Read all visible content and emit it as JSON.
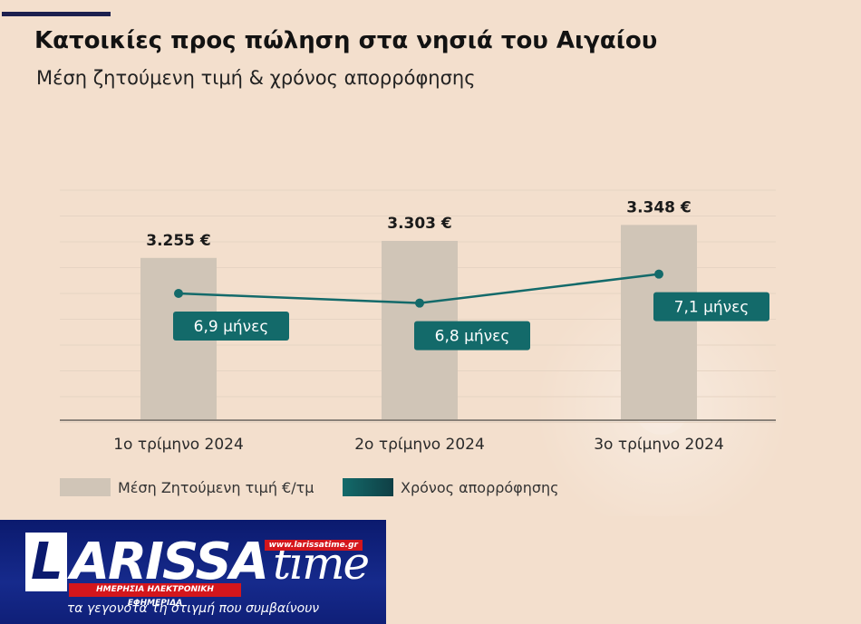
{
  "header": {
    "title": "Κατοικίες προς πώληση στα νησιά του Αιγαίου",
    "subtitle": "Μέση ζητούμενη τιμή & χρόνος απορρόφησης"
  },
  "chart_data": {
    "type": "bar",
    "categories": [
      "1ο τρίμηνο 2024",
      "2ο τρίμηνο 2024",
      "3ο τρίμηνο 2024"
    ],
    "series": [
      {
        "name": "Μέση Ζητούμενη τιμή €/τμ",
        "type": "bar",
        "values": [
          3255,
          3303,
          3348
        ],
        "labels": [
          "3.255 €",
          "3.303 €",
          "3.348 €"
        ],
        "color": "#d0c5b7"
      },
      {
        "name": "Χρόνος απορρόφησης",
        "type": "line",
        "values": [
          6.9,
          6.8,
          7.1
        ],
        "labels": [
          "6,9 μήνες",
          "6,8 μήνες",
          "7,1 μήνες"
        ],
        "color": "#136a6a"
      }
    ],
    "grid": true,
    "legend": "bottom-left"
  },
  "legend": {
    "bar_label": "Μέση Ζητούμενη τιμή €/τμ",
    "line_label": "Χρόνος απορρόφησης"
  },
  "logo": {
    "l_letter": "L",
    "word": "ARISSA",
    "time_word": "time",
    "url": "www.larissatime.gr",
    "strap": "ΗΜΕΡΗΣΙΑ ΗΛΕΚΤΡΟΝΙΚΗ ΕΦΗΜΕΡΙΔΑ",
    "tagline": "τα γεγονότα τη στιγμή που συμβαίνουν"
  },
  "colors": {
    "background": "#f3dfcd",
    "bar": "#d0c5b7",
    "line": "#136a6a",
    "badge": "#136a6a",
    "logo_blue": "#0b1a6e",
    "logo_red": "#d4161c"
  }
}
